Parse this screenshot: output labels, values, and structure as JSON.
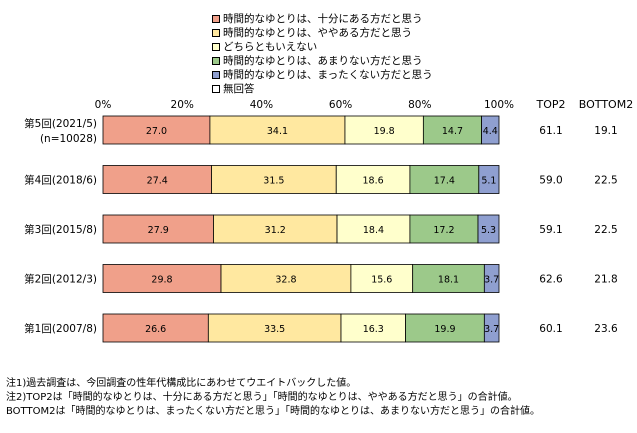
{
  "chart_data": {
    "type": "bar",
    "orientation": "horizontal-stacked-100",
    "series": [
      {
        "name": "時間的なゆとりは、十分にある方だと思う",
        "color": "#F0A08A",
        "values": [
          27.0,
          27.4,
          27.9,
          29.8,
          26.6
        ]
      },
      {
        "name": "時間的なゆとりは、ややある方だと思う",
        "color": "#FFE8A0",
        "values": [
          34.1,
          31.5,
          31.2,
          32.8,
          33.5
        ]
      },
      {
        "name": "どちらともいえない",
        "color": "#FFFFCC",
        "values": [
          19.8,
          18.6,
          18.4,
          15.6,
          16.3
        ]
      },
      {
        "name": "時間的なゆとりは、あまりない方だと思う",
        "color": "#9CC98A",
        "values": [
          14.7,
          17.4,
          17.2,
          18.1,
          19.9
        ]
      },
      {
        "name": "時間的なゆとりは、まったくない方だと思う",
        "color": "#8F9FD0",
        "values": [
          4.4,
          5.1,
          5.3,
          3.7,
          3.7
        ]
      },
      {
        "name": "無回答",
        "color": "#FFFFFF",
        "values": [
          0.0,
          0.0,
          0.0,
          0.0,
          0.0
        ]
      }
    ],
    "categories": [
      {
        "line1": "第5回(2021/5)",
        "line2": "(n=10028)"
      },
      {
        "line1": "第4回(2018/6)",
        "line2": ""
      },
      {
        "line1": "第3回(2015/8)",
        "line2": ""
      },
      {
        "line1": "第2回(2012/3)",
        "line2": ""
      },
      {
        "line1": "第1回(2007/8)",
        "line2": ""
      }
    ],
    "data_labels": [
      [
        "27.0",
        "34.1",
        "19.8",
        "14.7",
        "4.4"
      ],
      [
        "27.4",
        "31.5",
        "18.6",
        "17.4",
        "5.1"
      ],
      [
        "27.9",
        "31.2",
        "18.4",
        "17.2",
        "5.3"
      ],
      [
        "29.8",
        "32.8",
        "15.6",
        "18.1",
        "3.7"
      ],
      [
        "26.6",
        "33.5",
        "16.3",
        "19.9",
        "3.7"
      ]
    ],
    "x_ticks": [
      "0%",
      "20%",
      "40%",
      "60%",
      "80%",
      "100%"
    ],
    "xlim": [
      0,
      100
    ],
    "grid": false,
    "legend_position": "top",
    "summary_columns": {
      "headers": [
        "TOP2",
        "BOTTOM2"
      ],
      "top2": [
        "61.1",
        "59.0",
        "59.1",
        "62.6",
        "60.1"
      ],
      "bottom2": [
        "19.1",
        "22.5",
        "22.5",
        "21.8",
        "23.6"
      ]
    }
  },
  "notes": [
    "注1)過去調査は、今回調査の性年代構成比にあわせてウエイトバックした値。",
    "注2)TOP2は「時間的なゆとりは、十分にある方だと思う」「時間的なゆとりは、ややある方だと思う」の合計値。",
    "BOTTOM2は「時間的なゆとりは、まったくない方だと思う」「時間的なゆとりは、あまりない方だと思う」の合計値。"
  ]
}
